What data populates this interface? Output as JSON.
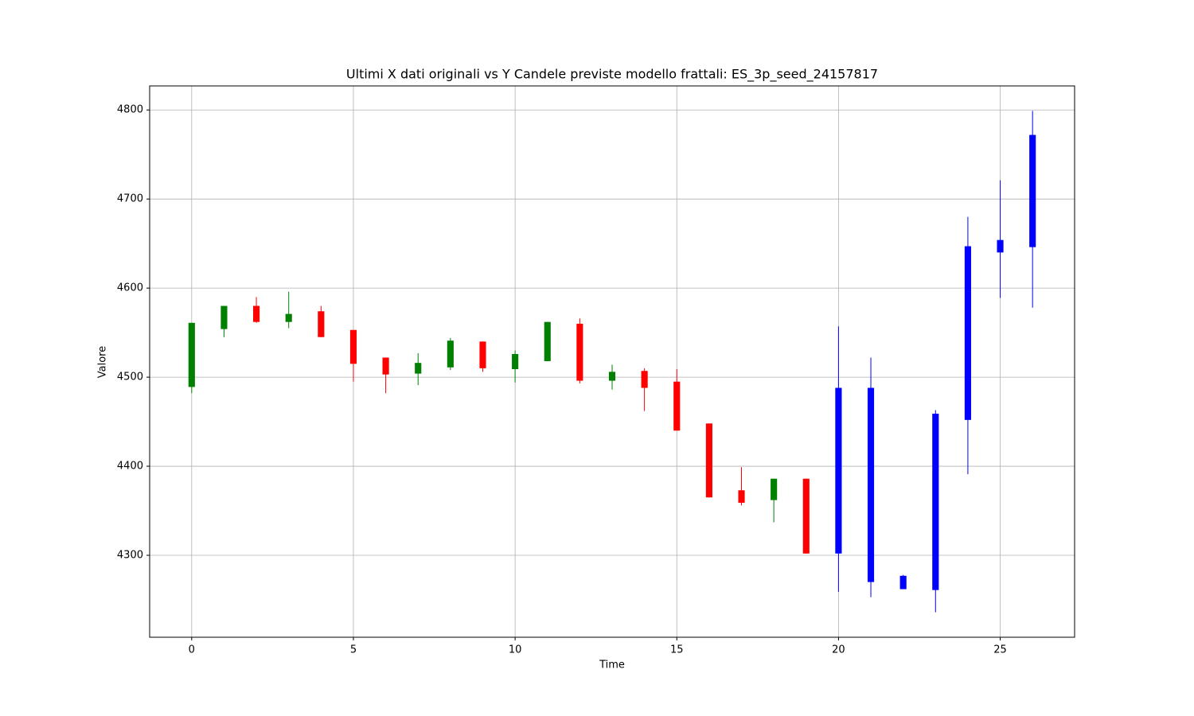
{
  "chart_data": {
    "type": "candlestick",
    "title": "Ultimi X dati originali vs Y Candele previste modello frattali: ES_3p_seed_24157817",
    "x_label": "Time",
    "y_label": "Valore",
    "x": [
      0,
      1,
      2,
      3,
      4,
      5,
      6,
      7,
      8,
      9,
      10,
      11,
      12,
      13,
      14,
      15,
      16,
      17,
      18,
      19,
      20,
      21,
      22,
      23,
      24,
      25,
      26
    ],
    "open": [
      4489,
      4554,
      4580,
      4562,
      4574,
      4553,
      4522,
      4504,
      4511,
      4540,
      4509,
      4518,
      4560,
      4496,
      4507,
      4495,
      4448,
      4373,
      4362,
      4386,
      4302,
      4270,
      4262,
      4261,
      4452,
      4640,
      4646
    ],
    "high": [
      4561,
      4580,
      4590,
      4596,
      4580,
      4553,
      4522,
      4527,
      4544,
      4540,
      4530,
      4562,
      4566,
      4514,
      4510,
      4509,
      4448,
      4399,
      4386,
      4386,
      4557,
      4522,
      4278,
      4463,
      4680,
      4721,
      4799
    ],
    "low": [
      4482,
      4545,
      4561,
      4555,
      4545,
      4495,
      4482,
      4491,
      4508,
      4506,
      4494,
      4518,
      4493,
      4486,
      4462,
      4440,
      4365,
      4356,
      4337,
      4302,
      4259,
      4253,
      4262,
      4236,
      4391,
      4589,
      4578
    ],
    "close": [
      4561,
      4580,
      4562,
      4571,
      4545,
      4515,
      4503,
      4516,
      4541,
      4510,
      4526,
      4562,
      4496,
      4506,
      4488,
      4440,
      4365,
      4359,
      4386,
      4302,
      4488,
      4488,
      4277,
      4459,
      4647,
      4654,
      4772
    ],
    "colors": [
      "green",
      "green",
      "red",
      "green",
      "red",
      "red",
      "red",
      "green",
      "green",
      "red",
      "green",
      "green",
      "red",
      "green",
      "red",
      "red",
      "red",
      "red",
      "green",
      "red",
      "blue",
      "blue",
      "blue",
      "blue",
      "blue",
      "blue",
      "blue"
    ],
    "xlim": [
      -1.3,
      27.3
    ],
    "ylim": [
      4208,
      4827
    ],
    "xticks": [
      0,
      5,
      10,
      15,
      20,
      25
    ],
    "yticks": [
      4300,
      4400,
      4500,
      4600,
      4700,
      4800
    ],
    "grid": true
  }
}
